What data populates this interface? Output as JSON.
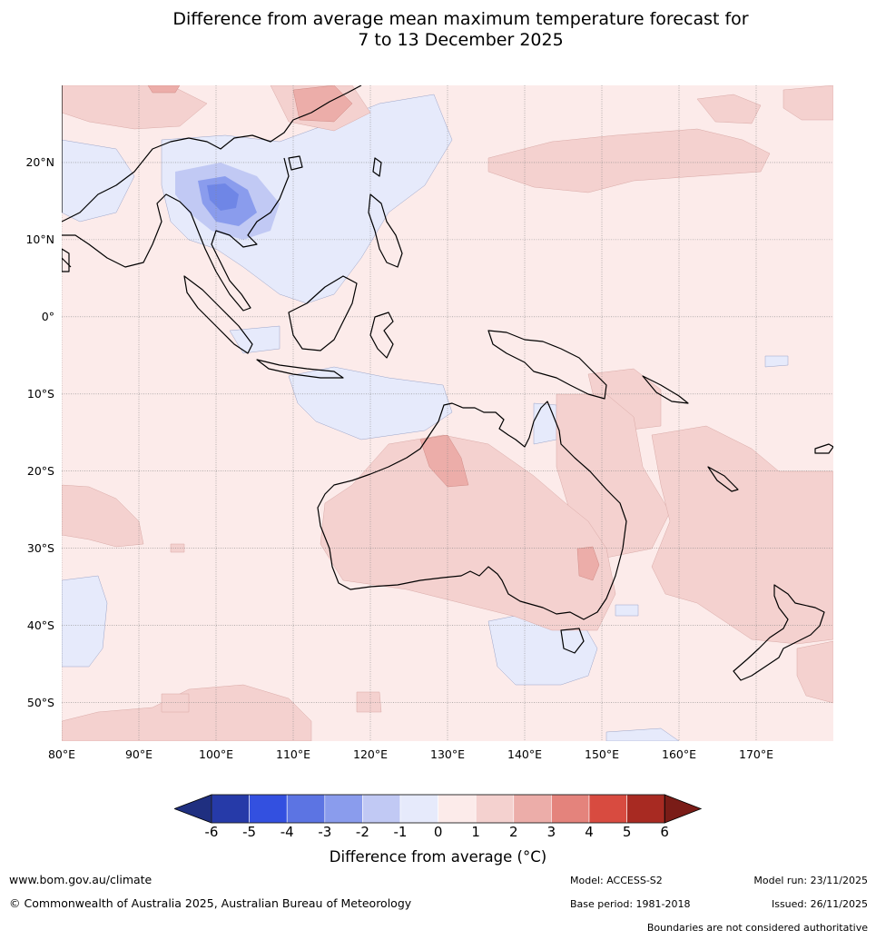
{
  "title": {
    "line1": "Difference from average mean maximum temperature forecast for",
    "line2": "7 to 13 December 2025"
  },
  "map": {
    "latitude_labels": [
      "20°N",
      "10°N",
      "0°",
      "10°S",
      "20°S",
      "30°S",
      "40°S",
      "50°S"
    ],
    "latitude_values": [
      20,
      10,
      0,
      -10,
      -20,
      -30,
      -40,
      -50
    ],
    "longitude_labels": [
      "80°E",
      "90°E",
      "100°E",
      "110°E",
      "120°E",
      "130°E",
      "140°E",
      "150°E",
      "160°E",
      "170°E"
    ],
    "longitude_values": [
      80,
      90,
      100,
      110,
      120,
      130,
      140,
      150,
      160,
      170
    ],
    "extent": {
      "lon_min": 80,
      "lon_max": 180,
      "lat_min": -55,
      "lat_max": 30
    }
  },
  "colorbar": {
    "tick_labels": [
      "-6",
      "-5",
      "-4",
      "-3",
      "-2",
      "-1",
      "0",
      "1",
      "2",
      "3",
      "4",
      "5",
      "6"
    ],
    "colors": [
      "#263aa8",
      "#3350e0",
      "#5c74e3",
      "#8a9ced",
      "#c1c9f4",
      "#e6eafb",
      "#fcebea",
      "#f4d1cf",
      "#ecada9",
      "#e4837c",
      "#d84b40",
      "#a82a22"
    ],
    "under_color": "#1f2f80",
    "over_color": "#7a1c17",
    "title": "Difference from average (°C)"
  },
  "footer": {
    "website": "www.bom.gov.au/climate",
    "copyright": "© Commonwealth of Australia 2025, Australian Bureau of Meteorology",
    "model": "Model: ACCESS-S2",
    "base_period": "Base period: 1981-2018",
    "model_run": "Model run: 23/11/2025",
    "issued": "Issued: 26/11/2025",
    "disclaimer": "Boundaries are not considered authoritative"
  },
  "colors": {
    "grid": "#888888",
    "coastline": "#000000",
    "border": "#777777"
  }
}
